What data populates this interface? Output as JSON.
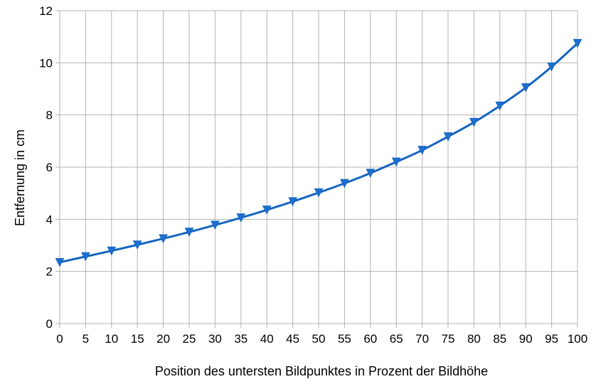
{
  "chart_data": {
    "type": "line",
    "title": "",
    "xlabel": "Position des untersten Bildpunktes in Prozent der Bildhöhe",
    "ylabel": "Entfernung in cm",
    "xlim": [
      0,
      100
    ],
    "ylim": [
      0,
      12
    ],
    "x_ticks": [
      0,
      5,
      10,
      15,
      20,
      25,
      30,
      35,
      40,
      45,
      50,
      55,
      60,
      65,
      70,
      75,
      80,
      85,
      90,
      95,
      100
    ],
    "y_ticks": [
      0,
      2,
      4,
      6,
      8,
      10,
      12
    ],
    "grid": true,
    "legend": "none",
    "marker": "triangle-down",
    "line_color": "#1565c0",
    "marker_color": "#1e6fd0",
    "series": [
      {
        "x": [
          0,
          5,
          10,
          15,
          20,
          25,
          30,
          35,
          40,
          45,
          50,
          55,
          60,
          65,
          70,
          75,
          80,
          85,
          90,
          95,
          100
        ],
        "values": [
          2.35,
          2.57,
          2.79,
          3.02,
          3.26,
          3.51,
          3.78,
          4.06,
          4.36,
          4.68,
          5.02,
          5.38,
          5.77,
          6.2,
          6.65,
          7.17,
          7.72,
          8.35,
          9.05,
          9.85,
          10.75
        ]
      }
    ]
  }
}
